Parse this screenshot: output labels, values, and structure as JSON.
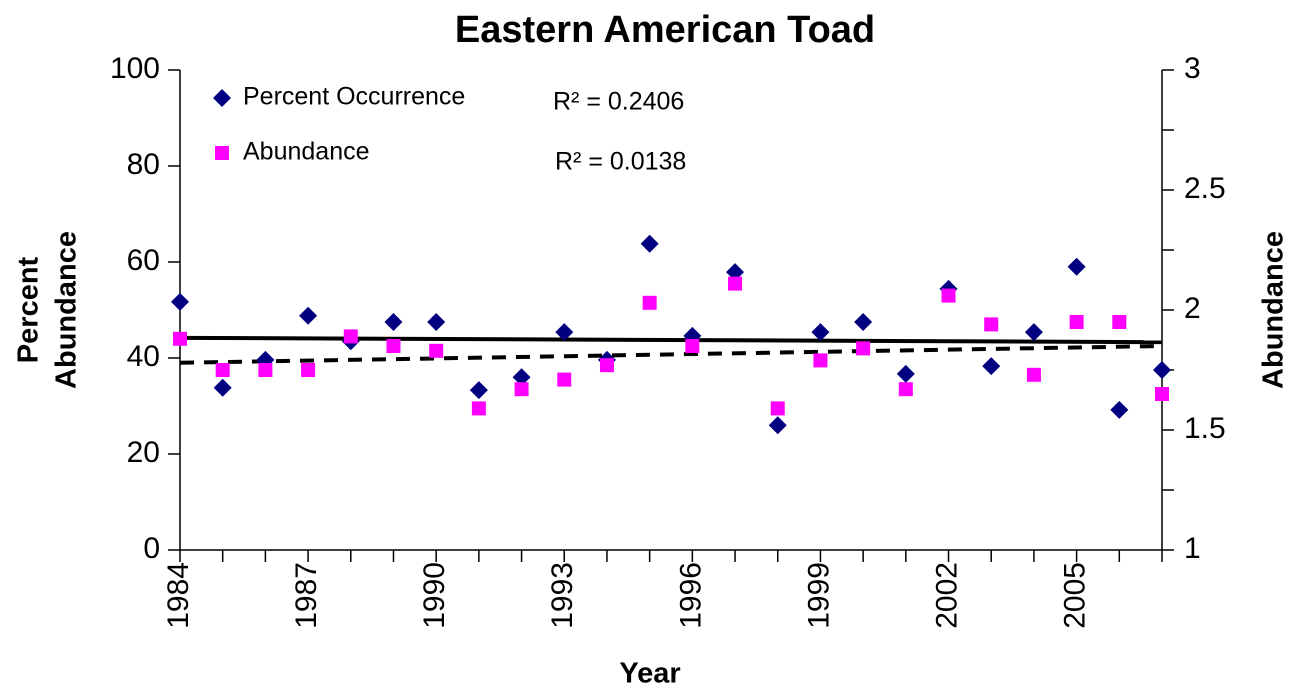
{
  "chart_data": {
    "type": "scatter",
    "title": "Eastern American Toad",
    "xlabel": "Year",
    "ylabel": [
      "Percent",
      "Abundance"
    ],
    "y2label": "Abundance",
    "x": [
      1984,
      1985,
      1986,
      1987,
      1988,
      1989,
      1990,
      1991,
      1992,
      1993,
      1994,
      1995,
      1996,
      1997,
      1998,
      1999,
      2000,
      2001,
      2002,
      2003,
      2004,
      2005,
      2006,
      2007
    ],
    "series": [
      {
        "name": "Percent Occurrence",
        "color": "#000080",
        "marker": "diamond",
        "axis": "y",
        "values": [
          51.7,
          33.8,
          39.6,
          48.8,
          43.5,
          47.5,
          47.5,
          33.3,
          36,
          45.4,
          39.6,
          63.8,
          44.6,
          57.9,
          26,
          45.4,
          47.5,
          36.7,
          54.4,
          38.3,
          45.4,
          59,
          29.2,
          37.5
        ]
      },
      {
        "name": "Abundance",
        "color": "#ff00ff",
        "marker": "square",
        "axis": "y2",
        "values": [
          1.88,
          1.75,
          1.75,
          1.75,
          1.89,
          1.85,
          1.83,
          1.59,
          1.67,
          1.71,
          1.77,
          2.03,
          1.85,
          2.11,
          1.59,
          1.79,
          1.84,
          1.67,
          2.06,
          1.94,
          1.73,
          1.95,
          1.95,
          1.65
        ]
      }
    ],
    "trendlines": [
      {
        "axis": "y",
        "style": "solid",
        "x": [
          1984,
          2007
        ],
        "values": [
          44.2,
          43.3
        ]
      },
      {
        "axis": "y2",
        "style": "dashed",
        "x": [
          1984,
          2007
        ],
        "values": [
          1.78,
          1.85
        ]
      }
    ],
    "annotations": [
      "R² = 0.2406",
      "R² = 0.0138"
    ],
    "xlim": [
      1984,
      2007
    ],
    "xticks": [
      1984,
      1987,
      1990,
      1993,
      1996,
      1999,
      2002,
      2005
    ],
    "ylim": [
      0,
      100
    ],
    "yticks": [
      0,
      20,
      40,
      60,
      80,
      100
    ],
    "y2lim": [
      1,
      3
    ],
    "y2ticks": [
      1,
      1.5,
      2,
      2.5,
      3
    ],
    "y2minor": [
      1.25,
      1.75,
      2.25,
      2.75
    ],
    "legend": "top-left",
    "grid": false
  }
}
